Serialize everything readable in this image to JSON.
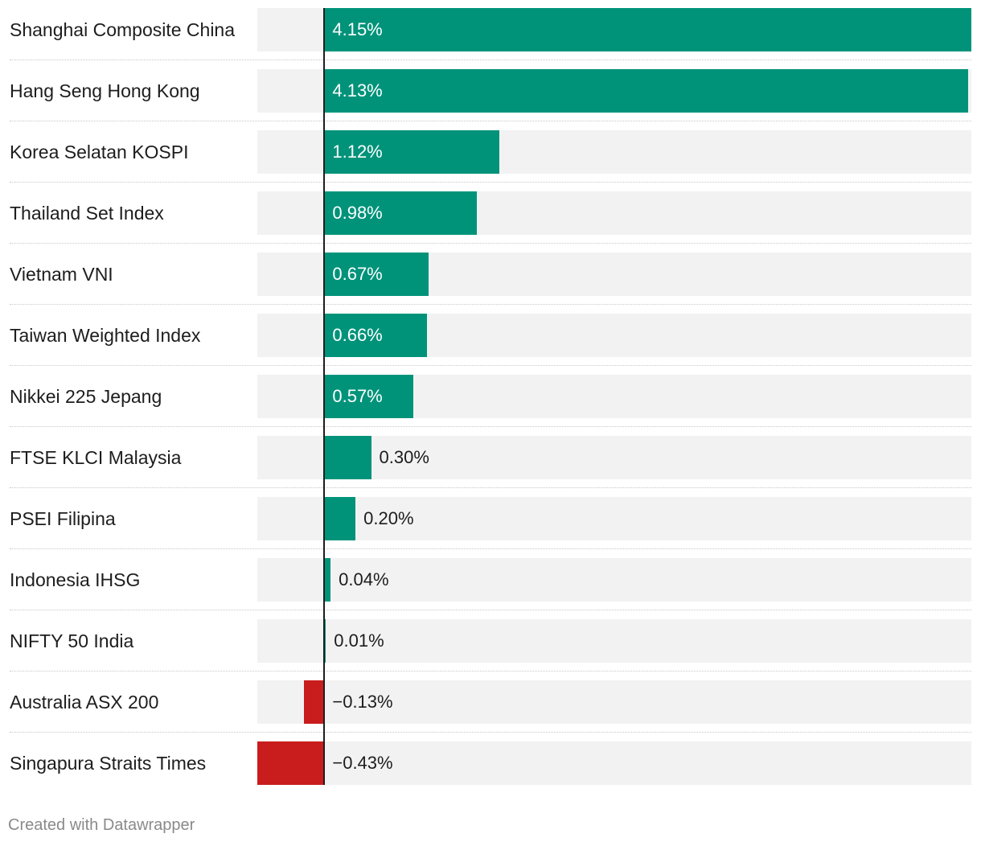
{
  "chart_data": {
    "type": "bar",
    "orientation": "horizontal",
    "categories": [
      "Shanghai Composite China",
      "Hang Seng Hong Kong",
      "Korea Selatan KOSPI",
      "Thailand Set Index",
      "Vietnam VNI",
      "Taiwan Weighted Index",
      "Nikkei 225 Jepang",
      "FTSE KLCI Malaysia",
      "PSEI Filipina",
      "Indonesia IHSG",
      "NIFTY 50 India",
      "Australia ASX 200",
      "Singapura Straits Times"
    ],
    "values": [
      4.15,
      4.13,
      1.12,
      0.98,
      0.67,
      0.66,
      0.57,
      0.3,
      0.2,
      0.04,
      0.01,
      -0.13,
      -0.43
    ],
    "value_labels": [
      "4.15%",
      "4.13%",
      "1.12%",
      "0.98%",
      "0.67%",
      "0.66%",
      "0.57%",
      "0.30%",
      "0.20%",
      "0.04%",
      "0.01%",
      "−0.13%",
      "−0.43%"
    ],
    "xlim": [
      -0.43,
      4.15
    ],
    "colors": {
      "positive": "#00937a",
      "negative": "#c91d1d"
    },
    "grid": false,
    "title": "",
    "xlabel": "",
    "ylabel": ""
  },
  "footer": {
    "credit": "Created with Datawrapper"
  }
}
